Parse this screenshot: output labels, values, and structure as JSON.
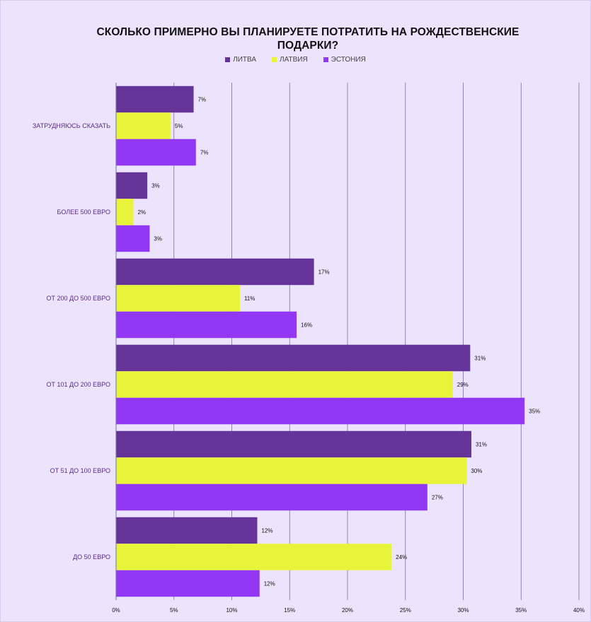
{
  "chart_data": {
    "type": "bar",
    "orientation": "horizontal",
    "title": "СКОЛЬКО ПРИМЕРНО ВЫ ПЛАНИРУЕТЕ ПОТРАТИТЬ НА РОЖДЕСТВЕНСКИЕ ПОДАРКИ?",
    "legend_position": "top",
    "grid": true,
    "xlim": [
      0,
      40
    ],
    "x_ticks": [
      "0%",
      "5%",
      "10%",
      "15%",
      "20%",
      "25%",
      "30%",
      "35%",
      "40%"
    ],
    "categories": [
      "ЗАТРУДНЯЮСЬ СКАЗАТЬ",
      "БОЛЕЕ 500 ЕВРО",
      "ОТ 200 ДО 500 ЕВРО",
      "ОТ 101 ДО 200 ЕВРО",
      "ОТ 51 ДО 100 ЕВРО",
      "ДО 50 ЕВРО"
    ],
    "series": [
      {
        "name": "ЛИТВА",
        "color": "#663399",
        "values": [
          6.7,
          2.7,
          17.1,
          30.6,
          30.7,
          12.2
        ],
        "labels": [
          "7%",
          "3%",
          "17%",
          "31%",
          "31%",
          "12%"
        ]
      },
      {
        "name": "ЛАТВИЯ",
        "color": "#e8f43a",
        "values": [
          4.7,
          1.5,
          10.7,
          29.1,
          30.3,
          23.8
        ],
        "labels": [
          "5%",
          "2%",
          "11%",
          "29%",
          "30%",
          "24%"
        ]
      },
      {
        "name": "ЭСТОНИЯ",
        "color": "#9238f5",
        "values": [
          6.9,
          2.9,
          15.6,
          35.3,
          26.9,
          12.4
        ],
        "labels": [
          "7%",
          "3%",
          "16%",
          "35%",
          "27%",
          "12%"
        ]
      }
    ]
  }
}
